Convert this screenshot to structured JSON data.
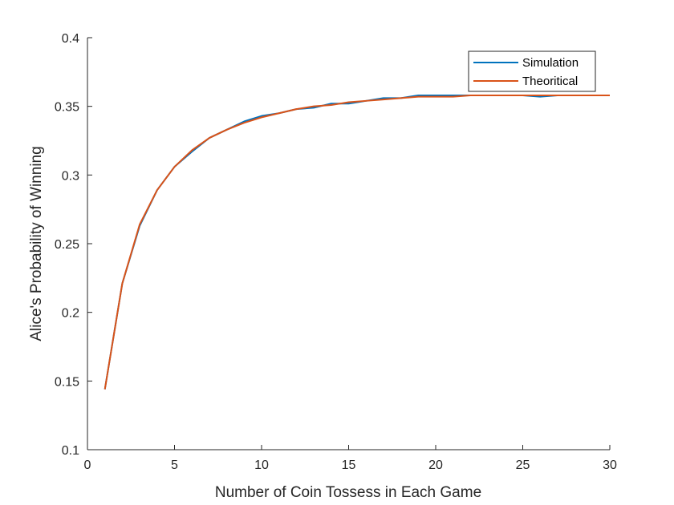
{
  "chart_data": {
    "type": "line",
    "title": "",
    "xlabel": "Number of Coin Tossess in Each Game",
    "ylabel": "Alice's Probability of Winning",
    "xlim": [
      0,
      30
    ],
    "ylim": [
      0.1,
      0.4
    ],
    "xticks": [
      0,
      5,
      10,
      15,
      20,
      25,
      30
    ],
    "xtick_labels": [
      "0",
      "5",
      "10",
      "15",
      "20",
      "25",
      "30"
    ],
    "yticks": [
      0.1,
      0.15,
      0.2,
      0.25,
      0.3,
      0.35,
      0.4
    ],
    "ytick_labels": [
      "0.1",
      "0.15",
      "0.2",
      "0.25",
      "0.3",
      "0.35",
      "0.4"
    ],
    "grid": false,
    "legend_position": "top-right",
    "x": [
      1,
      2,
      3,
      4,
      5,
      6,
      7,
      8,
      9,
      10,
      11,
      12,
      13,
      14,
      15,
      16,
      17,
      18,
      19,
      20,
      21,
      22,
      23,
      24,
      25,
      26,
      27,
      28,
      29,
      30
    ],
    "series": [
      {
        "name": "Simulation",
        "color": "#0072BD",
        "values": [
          0.144,
          0.221,
          0.263,
          0.289,
          0.306,
          0.317,
          0.327,
          0.333,
          0.339,
          0.343,
          0.345,
          0.348,
          0.349,
          0.352,
          0.352,
          0.354,
          0.356,
          0.356,
          0.358,
          0.358,
          0.358,
          0.358,
          0.358,
          0.358,
          0.358,
          0.357,
          0.358,
          0.358,
          0.358,
          0.358
        ]
      },
      {
        "name": "Theoritical",
        "color": "#D95319",
        "values": [
          0.144,
          0.221,
          0.264,
          0.289,
          0.306,
          0.318,
          0.327,
          0.333,
          0.338,
          0.342,
          0.345,
          0.348,
          0.35,
          0.351,
          0.353,
          0.354,
          0.355,
          0.356,
          0.357,
          0.357,
          0.357,
          0.358,
          0.358,
          0.358,
          0.358,
          0.358,
          0.358,
          0.358,
          0.358,
          0.358
        ]
      }
    ]
  }
}
